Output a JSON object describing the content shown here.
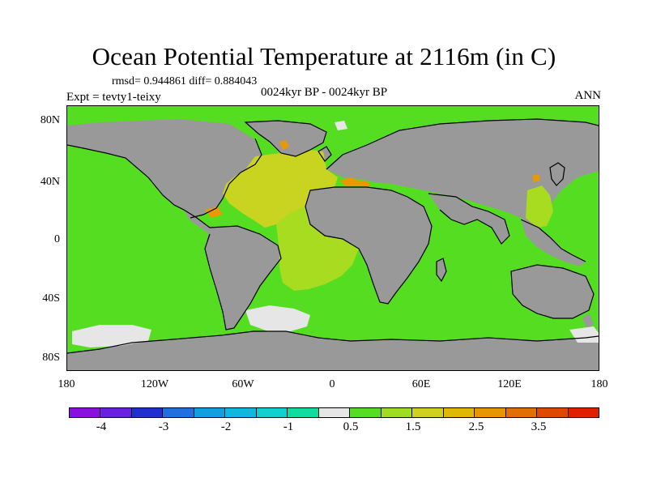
{
  "title": "Ocean Potential Temperature at 2116m (in C)",
  "stats": "rmsd= 0.944861 diff= 0.884043",
  "experiment": "Expt = tevty1-teixy",
  "subtitle": "0024kyr BP - 0024kyr BP",
  "season": "ANN",
  "lat_labels": [
    "80N",
    "40N",
    "0",
    "40S",
    "80S"
  ],
  "lon_labels": [
    "180",
    "120W",
    "60W",
    "0",
    "60E",
    "120E",
    "180"
  ],
  "colors": {
    "land": "#999999",
    "ocean_default": "#55dd22",
    "atlantic_warm": "#c8d420",
    "atlantic_mid": "#a8dc20",
    "ice_white": "#e6e6e6",
    "hotspot": "#e89a00"
  },
  "colorbar": {
    "colors": [
      "#8a10e0",
      "#6a20e0",
      "#2030d0",
      "#2070e0",
      "#10a0e0",
      "#10b8e0",
      "#10d0d0",
      "#10dca0",
      "#e6e6e6",
      "#55dd22",
      "#a0dc20",
      "#d0d020",
      "#e0b800",
      "#e69600",
      "#e07000",
      "#e04800",
      "#e02000"
    ],
    "labels": [
      "-4",
      "-3",
      "-2",
      "-1",
      "0.5",
      "1.5",
      "2.5",
      "3.5"
    ]
  }
}
